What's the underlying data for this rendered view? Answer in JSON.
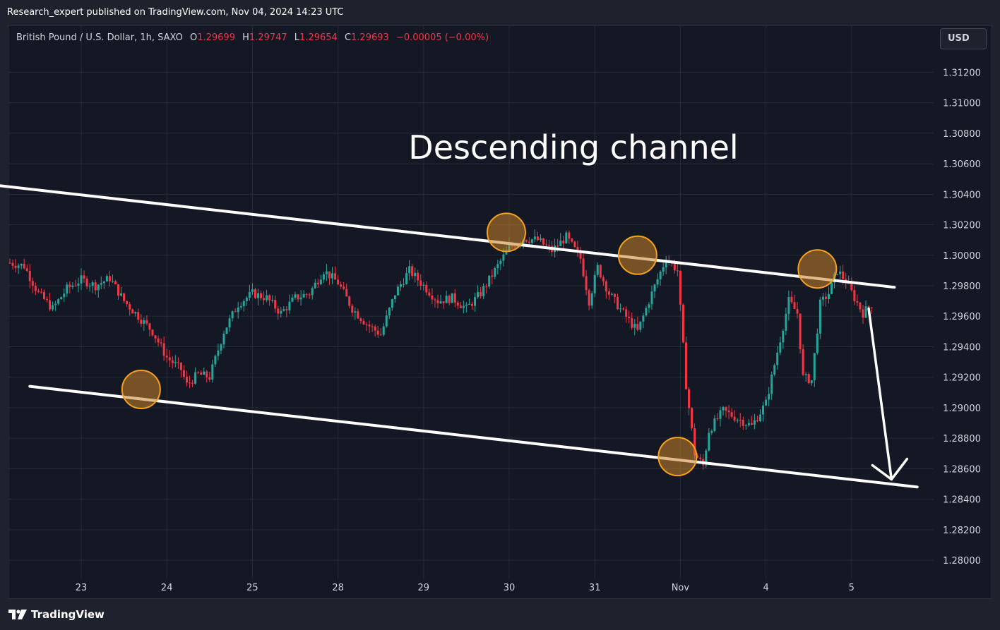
{
  "header": {
    "published_text": "Research_expert published on TradingView.com, Nov 04, 2024 14:23 UTC"
  },
  "symbol_line": {
    "symbol": "British Pound / U.S. Dollar, 1h, SAXO",
    "o_label": "O",
    "o_value": "1.29699",
    "h_label": "H",
    "h_value": "1.29747",
    "l_label": "L",
    "l_value": "1.29654",
    "c_label": "C",
    "c_value": "1.29693",
    "change": "−0.00005 (−0.00%)"
  },
  "currency_button": "USD",
  "footer": {
    "brand": "TradingView"
  },
  "colors": {
    "background": "#141824",
    "grid": "#262a36",
    "up": "#26a69a",
    "down": "#f23645",
    "annotation": "#ffffff",
    "circle_fill": "#c8842a",
    "circle_stroke": "#f7a21b"
  },
  "chart_data": {
    "type": "candlestick",
    "title": "Descending channel",
    "ylim": [
      1.2788,
      1.3135
    ],
    "y_ticks": [
      "1.31200",
      "1.31000",
      "1.30800",
      "1.30600",
      "1.30400",
      "1.30200",
      "1.30000",
      "1.29800",
      "1.29600",
      "1.29400",
      "1.29200",
      "1.29000",
      "1.28800",
      "1.28600",
      "1.28400",
      "1.28200",
      "1.28000"
    ],
    "x_ticks": [
      "23",
      "24",
      "25",
      "28",
      "29",
      "30",
      "31",
      "Nov",
      "4",
      "5"
    ],
    "series": [
      {
        "interval": "1h",
        "close_path": [
          [
            0,
            1.2995
          ],
          [
            5,
            1.2993
          ],
          [
            10,
            1.2975
          ],
          [
            15,
            1.2965
          ],
          [
            20,
            1.2978
          ],
          [
            25,
            1.2984
          ],
          [
            30,
            1.298
          ],
          [
            35,
            1.2985
          ],
          [
            40,
            1.297
          ],
          [
            45,
            1.296
          ],
          [
            50,
            1.295
          ],
          [
            55,
            1.2933
          ],
          [
            60,
            1.2925
          ],
          [
            62,
            1.2915
          ],
          [
            66,
            1.2922
          ],
          [
            70,
            1.292
          ],
          [
            75,
            1.295
          ],
          [
            80,
            1.2968
          ],
          [
            85,
            1.2975
          ],
          [
            90,
            1.2972
          ],
          [
            95,
            1.2962
          ],
          [
            100,
            1.2972
          ],
          [
            105,
            1.2975
          ],
          [
            110,
            1.299
          ],
          [
            115,
            1.2982
          ],
          [
            120,
            1.2965
          ],
          [
            125,
            1.2955
          ],
          [
            130,
            1.2948
          ],
          [
            135,
            1.2975
          ],
          [
            140,
            1.299
          ],
          [
            145,
            1.298
          ],
          [
            150,
            1.297
          ],
          [
            155,
            1.2972
          ],
          [
            160,
            1.2965
          ],
          [
            165,
            1.2975
          ],
          [
            170,
            1.299
          ],
          [
            175,
            1.3005
          ],
          [
            180,
            1.3011
          ],
          [
            185,
            1.301
          ],
          [
            190,
            1.3003
          ],
          [
            195,
            1.3012
          ],
          [
            200,
            1.2998
          ],
          [
            203,
            1.297
          ],
          [
            206,
            1.2992
          ],
          [
            210,
            1.2975
          ],
          [
            215,
            1.2962
          ],
          [
            220,
            1.295
          ],
          [
            225,
            1.2975
          ],
          [
            230,
            1.2998
          ],
          [
            234,
            1.299
          ],
          [
            237,
            1.2915
          ],
          [
            240,
            1.287
          ],
          [
            243,
            1.2862
          ],
          [
            245,
            1.2885
          ],
          [
            250,
            1.2898
          ],
          [
            255,
            1.2893
          ],
          [
            260,
            1.2888
          ],
          [
            265,
            1.2903
          ],
          [
            270,
            1.2945
          ],
          [
            273,
            1.297
          ],
          [
            276,
            1.2962
          ],
          [
            278,
            1.292
          ],
          [
            281,
            1.2918
          ],
          [
            284,
            1.2968
          ],
          [
            287,
            1.2975
          ],
          [
            290,
            1.299
          ],
          [
            293,
            1.2983
          ],
          [
            296,
            1.2972
          ],
          [
            299,
            1.2962
          ],
          [
            302,
            1.2968
          ]
        ]
      }
    ],
    "annotations": {
      "upper_channel_line": [
        [
          1.3047,
          -10
        ],
        [
          1.2979,
          310
        ]
      ],
      "lower_channel_line": [
        [
          1.2914,
          7
        ],
        [
          1.2848,
          318
        ]
      ],
      "touch_points": [
        [
          1.2912,
          46
        ],
        [
          1.3015,
          174
        ],
        [
          1.3,
          220
        ],
        [
          1.2868,
          234
        ],
        [
          1.2991,
          283
        ]
      ],
      "projection_arrow": [
        [
          1.2965,
          301
        ],
        [
          1.2853,
          309
        ]
      ]
    }
  }
}
